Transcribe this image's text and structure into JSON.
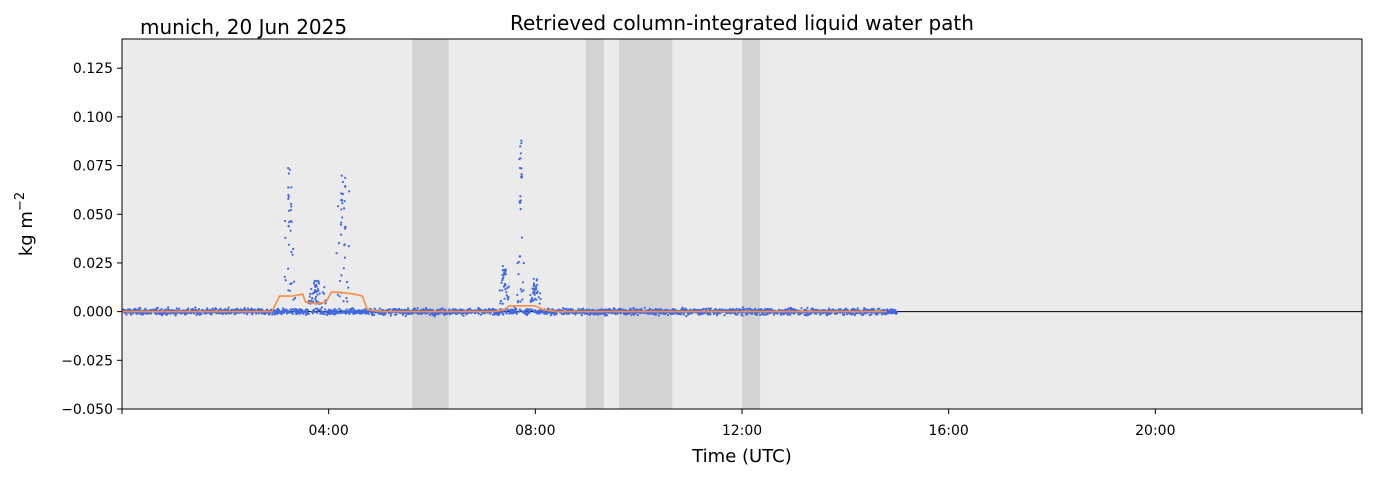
{
  "chart_data": {
    "type": "scatter",
    "title": "Retrieved column-integrated liquid water path",
    "subtitle": "munich, 20 Jun 2025",
    "xlabel": "Time (UTC)",
    "ylabel": "kg m",
    "ylabel_superscript": "−2",
    "xlim_hours": [
      0,
      24
    ],
    "ylim": [
      -0.05,
      0.14
    ],
    "x_ticks": [
      {
        "hour": 0,
        "label": ""
      },
      {
        "hour": 4,
        "label": "04:00"
      },
      {
        "hour": 8,
        "label": "08:00"
      },
      {
        "hour": 12,
        "label": "12:00"
      },
      {
        "hour": 16,
        "label": "16:00"
      },
      {
        "hour": 20,
        "label": "20:00"
      },
      {
        "hour": 24,
        "label": ""
      }
    ],
    "y_ticks": [
      {
        "value": -0.05,
        "label": "−0.050"
      },
      {
        "value": -0.025,
        "label": "−0.025"
      },
      {
        "value": 0.0,
        "label": "0.000"
      },
      {
        "value": 0.025,
        "label": "0.025"
      },
      {
        "value": 0.05,
        "label": "0.050"
      },
      {
        "value": 0.075,
        "label": "0.075"
      },
      {
        "value": 0.1,
        "label": "0.100"
      },
      {
        "value": 0.125,
        "label": "0.125"
      }
    ],
    "grid": false,
    "zero_line": true,
    "data_span_hours": [
      0.03,
      15.0
    ],
    "shaded_intervals_hours": [
      [
        5.62,
        6.32
      ],
      [
        8.98,
        9.33
      ],
      [
        9.62,
        10.65
      ],
      [
        12.0,
        12.35
      ]
    ],
    "series": [
      {
        "kind": "scatter",
        "color": "#4169e1",
        "spikes": [
          {
            "hours": [
              3.15,
              3.35
            ],
            "peak": 0.074
          },
          {
            "hours": [
              4.15,
              4.4
            ],
            "peak": 0.076
          },
          {
            "hours": [
              7.65,
              7.78
            ],
            "peak": 0.091
          },
          {
            "hours": [
              7.3,
              7.5
            ],
            "peak": 0.024
          },
          {
            "hours": [
              3.6,
              3.95
            ],
            "peak": 0.016
          },
          {
            "hours": [
              7.9,
              8.1
            ],
            "peak": 0.017
          }
        ]
      },
      {
        "kind": "line",
        "color": "#ff8c42",
        "hours": [
          0.0,
          2.9,
          3.05,
          3.3,
          3.5,
          3.55,
          3.75,
          3.95,
          4.05,
          4.2,
          4.5,
          4.65,
          4.75,
          5.0,
          7.2,
          7.4,
          7.5,
          8.0,
          8.15,
          8.4,
          14.8
        ],
        "values": [
          0.0,
          0.0,
          0.008,
          0.008,
          0.009,
          0.005,
          0.004,
          0.005,
          0.01,
          0.01,
          0.009,
          0.008,
          0.001,
          0.0,
          0.0,
          0.001,
          0.003,
          0.003,
          0.001,
          0.0,
          0.0
        ]
      }
    ]
  },
  "colors": {
    "background": "#ebebeb",
    "shade": "#d3d3d3",
    "points": "#4169e1",
    "median_line": "#ff8c42",
    "zero_line": "#000000"
  }
}
